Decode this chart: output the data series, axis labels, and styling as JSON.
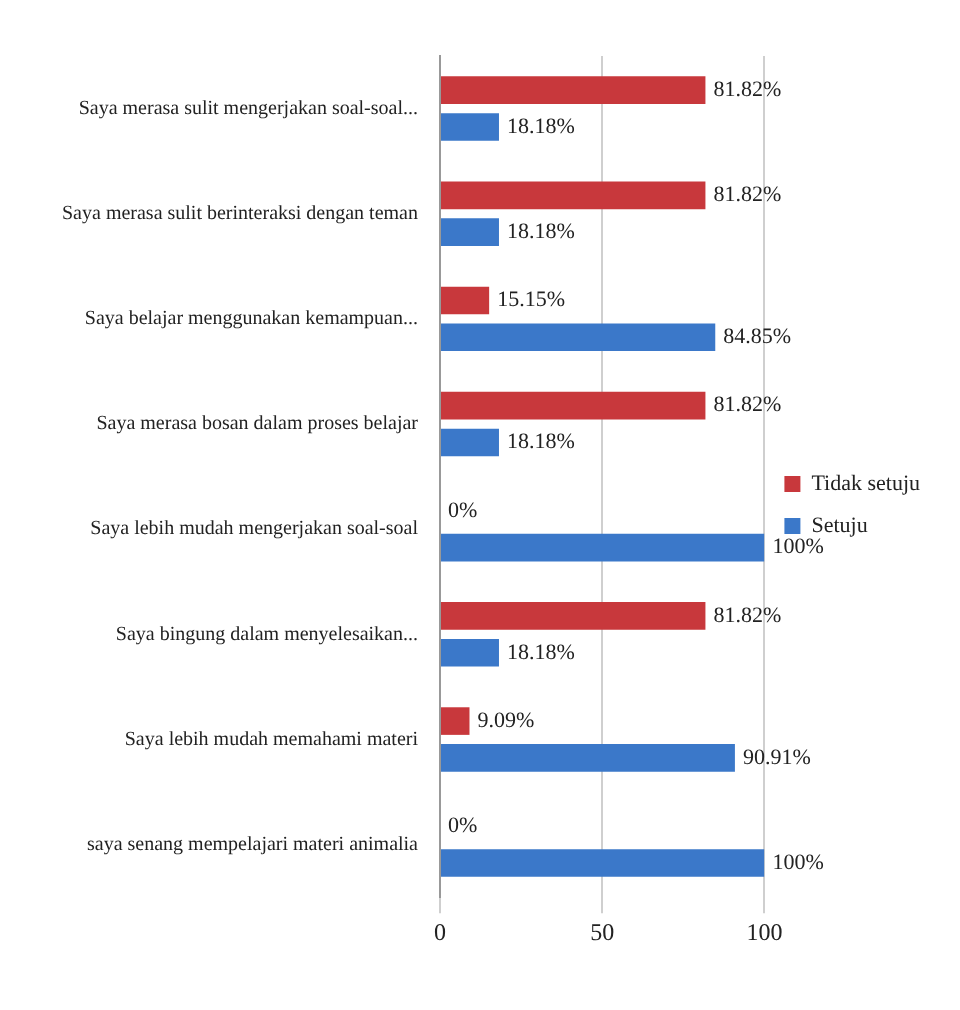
{
  "chart_data": {
    "type": "bar",
    "orientation": "horizontal",
    "categories": [
      "Saya merasa sulit mengerjakan soal-soal...",
      "Saya merasa sulit berinteraksi dengan teman",
      "Saya belajar menggunakan kemampuan...",
      "Saya merasa bosan dalam proses belajar",
      "Saya lebih mudah mengerjakan soal-soal",
      "Saya bingung dalam menyelesaikan...",
      "Saya lebih mudah memahami materi",
      "saya senang mempelajari materi animalia"
    ],
    "series": [
      {
        "name": "Tidak setuju",
        "color": "#c8383c",
        "values": [
          81.82,
          81.82,
          15.15,
          81.82,
          0,
          81.82,
          9.09,
          0
        ],
        "value_labels": [
          "81.82%",
          "81.82%",
          "15.15%",
          "81.82%",
          "0%",
          "81.82%",
          "9.09%",
          "0%"
        ]
      },
      {
        "name": "Setuju",
        "color": "#3b78c9",
        "values": [
          18.18,
          18.18,
          84.85,
          18.18,
          100,
          18.18,
          90.91,
          100
        ],
        "value_labels": [
          "18.18%",
          "18.18%",
          "84.85%",
          "18.18%",
          "100%",
          "18.18%",
          "90.91%",
          "100%"
        ]
      }
    ],
    "xlim": [
      0,
      100
    ],
    "xticks": [
      0,
      50,
      100
    ],
    "grid": "x",
    "legend": "right"
  }
}
